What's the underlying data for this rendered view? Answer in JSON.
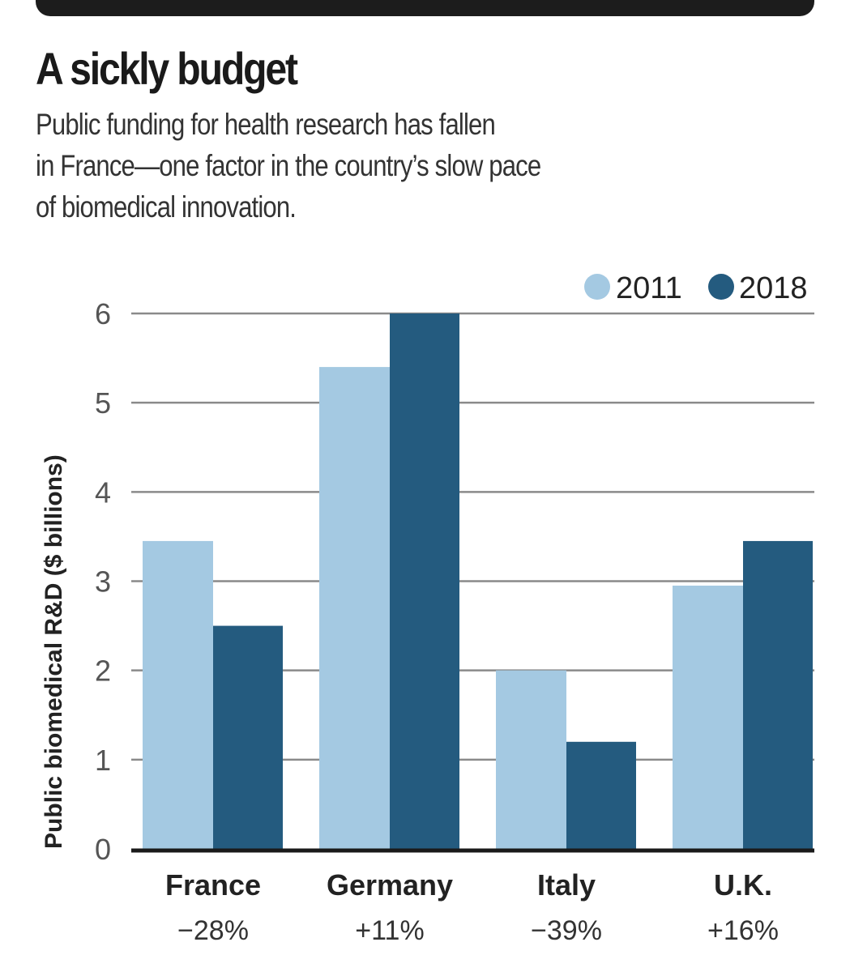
{
  "header": {
    "title": "A sickly budget",
    "subtitle_lines": [
      "Public funding for health research has fallen",
      "in France—one factor in the country’s slow pace",
      "of biomedical innovation."
    ]
  },
  "colors": {
    "series_2011": "#a4c9e2",
    "series_2018": "#245b7f",
    "gridline": "#8a8a8a",
    "baseline": "#1a1a1a",
    "topbar": "#1c1c1c"
  },
  "chart_data": {
    "type": "bar",
    "title": "A sickly budget",
    "xlabel": "",
    "ylabel": "Public biomedical R&D ($ billions)",
    "ylim": [
      0,
      6
    ],
    "yticks": [
      0,
      1,
      2,
      3,
      4,
      5,
      6
    ],
    "grid": true,
    "legend_position": "top-right",
    "categories": [
      "France",
      "Germany",
      "Italy",
      "U.K."
    ],
    "category_annotations": [
      "−28%",
      "+11%",
      "−39%",
      "+16%"
    ],
    "series": [
      {
        "name": "2011",
        "values": [
          3.45,
          5.4,
          2.0,
          2.95
        ]
      },
      {
        "name": "2018",
        "values": [
          2.5,
          6.0,
          1.2,
          3.45
        ]
      }
    ]
  }
}
